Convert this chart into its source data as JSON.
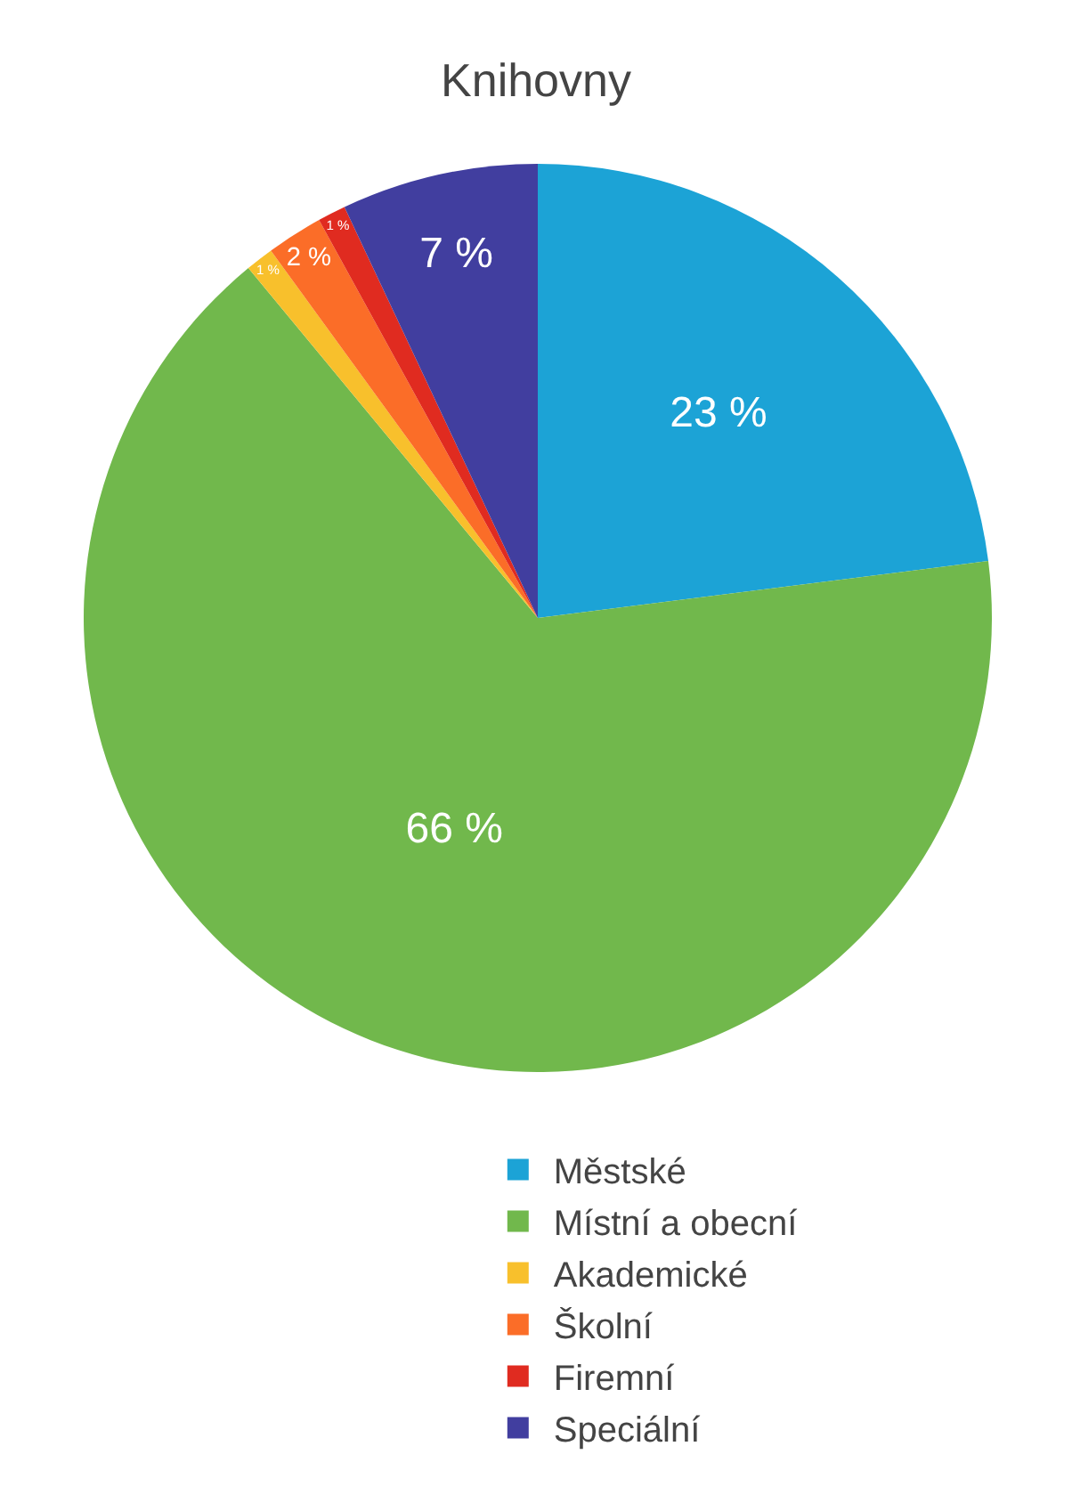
{
  "chart_data": {
    "type": "pie",
    "title": "Knihovny",
    "categories": [
      "Městské",
      "Místní a obecní",
      "Akademické",
      "Školní",
      "Firemní",
      "Speciální"
    ],
    "values": [
      23,
      66,
      1,
      2,
      1,
      7
    ],
    "value_labels": [
      "23 %",
      "66 %",
      "1 %",
      "2 %",
      "1 %",
      "7 %"
    ],
    "colors": [
      "#1ca3d6",
      "#71b84c",
      "#f8c02c",
      "#fb6d28",
      "#e02b20",
      "#413e9f"
    ],
    "legend": "bottom"
  }
}
